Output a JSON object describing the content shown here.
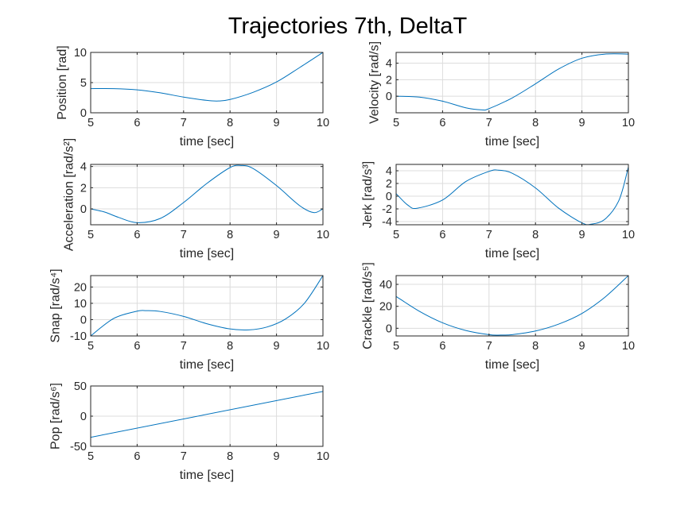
{
  "figure": {
    "title": "Trajectories 7th, DeltaT"
  },
  "chart_data": [
    {
      "type": "line",
      "xlabel": "time [sec]",
      "ylabel": "Position [rad]",
      "xlim": [
        5,
        10
      ],
      "ylim": [
        0,
        10
      ],
      "xticks": [
        5,
        6,
        7,
        8,
        9,
        10
      ],
      "yticks": [
        0,
        5,
        10
      ],
      "grid": true,
      "series": [
        {
          "color": "#0072bd",
          "x": [
            5,
            5.5,
            6,
            6.5,
            7,
            7.5,
            7.75,
            8,
            8.5,
            9,
            9.5,
            10
          ],
          "y": [
            4,
            4,
            3.8,
            3.3,
            2.6,
            2.05,
            1.95,
            2.2,
            3.4,
            5.1,
            7.5,
            10
          ]
        }
      ]
    },
    {
      "type": "line",
      "xlabel": "time [sec]",
      "ylabel": "Velocity [rad/s]",
      "xlim": [
        5,
        10
      ],
      "ylim": [
        -2,
        5.3
      ],
      "xticks": [
        5,
        6,
        7,
        8,
        9,
        10
      ],
      "yticks": [
        0,
        2,
        4
      ],
      "grid": true,
      "series": [
        {
          "color": "#0072bd",
          "x": [
            5,
            5.5,
            6,
            6.5,
            6.85,
            7,
            7.5,
            8,
            8.5,
            9,
            9.5,
            10
          ],
          "y": [
            0,
            -0.1,
            -0.6,
            -1.4,
            -1.65,
            -1.5,
            -0.2,
            1.5,
            3.3,
            4.6,
            5.1,
            5.1
          ]
        }
      ]
    },
    {
      "type": "line",
      "xlabel": "time [sec]",
      "ylabel": "Acceleration [rad/s²]",
      "xlim": [
        5,
        10
      ],
      "ylim": [
        -1.5,
        4.2
      ],
      "xticks": [
        5,
        6,
        7,
        8,
        9,
        10
      ],
      "yticks": [
        0,
        2,
        4
      ],
      "grid": true,
      "series": [
        {
          "color": "#0072bd",
          "x": [
            5,
            5.3,
            5.6,
            6,
            6.5,
            7,
            7.5,
            8,
            8.25,
            8.5,
            9,
            9.5,
            9.8,
            10
          ],
          "y": [
            0,
            -0.3,
            -0.8,
            -1.3,
            -0.9,
            0.6,
            2.4,
            3.9,
            4.1,
            3.8,
            2.2,
            0.3,
            -0.35,
            0
          ]
        }
      ]
    },
    {
      "type": "line",
      "xlabel": "time [sec]",
      "ylabel": "Jerk [rad/s³]",
      "xlim": [
        5,
        10
      ],
      "ylim": [
        -4.5,
        5
      ],
      "xticks": [
        5,
        6,
        7,
        8,
        9,
        10
      ],
      "yticks": [
        -4,
        -2,
        0,
        2,
        4
      ],
      "grid": true,
      "series": [
        {
          "color": "#0072bd",
          "x": [
            5,
            5.25,
            5.45,
            6,
            6.5,
            7,
            7.2,
            7.5,
            8,
            8.5,
            9,
            9.2,
            9.5,
            9.8,
            10
          ],
          "y": [
            0.4,
            -1.4,
            -1.9,
            -0.6,
            2.3,
            3.9,
            4.1,
            3.6,
            1.3,
            -1.9,
            -4.2,
            -4.4,
            -3.6,
            -0.6,
            4.6
          ]
        }
      ]
    },
    {
      "type": "line",
      "xlabel": "time [sec]",
      "ylabel": "Snap [rad/s⁴]",
      "xlim": [
        5,
        10
      ],
      "ylim": [
        -10,
        27
      ],
      "xticks": [
        5,
        6,
        7,
        8,
        9,
        10
      ],
      "yticks": [
        -10,
        0,
        10,
        20
      ],
      "grid": true,
      "series": [
        {
          "color": "#0072bd",
          "x": [
            5,
            5.5,
            6,
            6.2,
            6.5,
            7,
            7.5,
            8,
            8.4,
            8.8,
            9.2,
            9.6,
            10
          ],
          "y": [
            -10,
            0.8,
            5.2,
            5.5,
            5,
            2,
            -2.5,
            -5.7,
            -6.3,
            -4.5,
            0.5,
            10,
            27
          ]
        }
      ]
    },
    {
      "type": "line",
      "xlabel": "time [sec]",
      "ylabel": "Crackle [rad/s⁵]",
      "xlim": [
        5,
        10
      ],
      "ylim": [
        -7,
        48
      ],
      "xticks": [
        5,
        6,
        7,
        8,
        9,
        10
      ],
      "yticks": [
        0,
        20,
        40
      ],
      "grid": true,
      "series": [
        {
          "color": "#0072bd",
          "x": [
            5,
            5.5,
            6,
            6.5,
            7,
            7.25,
            7.5,
            8,
            8.5,
            9,
            9.5,
            10
          ],
          "y": [
            29,
            15.5,
            5,
            -2,
            -5.8,
            -6.2,
            -5.8,
            -2.5,
            3.8,
            13.5,
            28.5,
            48
          ]
        }
      ]
    },
    {
      "type": "line",
      "xlabel": "time [sec]",
      "ylabel": "Pop [rad/s⁶]",
      "xlim": [
        5,
        10
      ],
      "ylim": [
        -50,
        50
      ],
      "xticks": [
        5,
        6,
        7,
        8,
        9,
        10
      ],
      "yticks": [
        -50,
        0,
        50
      ],
      "grid": true,
      "series": [
        {
          "color": "#0072bd",
          "x": [
            5,
            10
          ],
          "y": [
            -35,
            41
          ]
        }
      ]
    }
  ]
}
